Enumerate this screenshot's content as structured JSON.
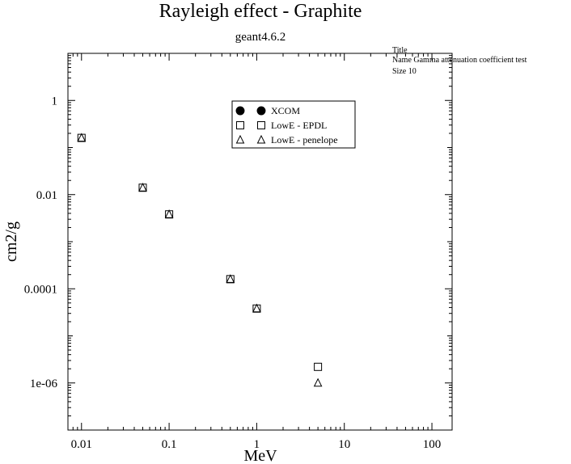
{
  "chart_data": {
    "type": "scatter",
    "title": "Rayleigh effect - Graphite",
    "subtitle": "geant4.6.2",
    "xlabel": "MeV",
    "ylabel": "cm2/g",
    "xscale": "log",
    "yscale": "log",
    "xlim": [
      0.007,
      170
    ],
    "ylim": [
      1e-07,
      10
    ],
    "x_ticks": [
      {
        "value": 0.01,
        "label": "0.01"
      },
      {
        "value": 0.1,
        "label": "0.1"
      },
      {
        "value": 1,
        "label": "1"
      },
      {
        "value": 10,
        "label": "10"
      },
      {
        "value": 100,
        "label": "100"
      }
    ],
    "y_ticks": [
      {
        "value": 1e-06,
        "label": "1e-06"
      },
      {
        "value": 0.0001,
        "label": "0.0001"
      },
      {
        "value": 0.01,
        "label": "0.01"
      },
      {
        "value": 1,
        "label": "1"
      }
    ],
    "grid": false,
    "legend_position": "top-center",
    "series": [
      {
        "name": "XCOM",
        "marker": "circle-filled",
        "x": [],
        "y": []
      },
      {
        "name": "LowE - EPDL",
        "marker": "square-open",
        "x": [
          0.01,
          0.05,
          0.1,
          0.5,
          1,
          5
        ],
        "y": [
          0.16,
          0.014,
          0.0038,
          0.00016,
          3.8e-05,
          2.2e-06
        ]
      },
      {
        "name": "LowE - penelope",
        "marker": "triangle-open",
        "x": [
          0.01,
          0.05,
          0.1,
          0.5,
          1,
          5
        ],
        "y": [
          0.16,
          0.014,
          0.0038,
          0.00016,
          3.8e-05,
          1e-06
        ]
      }
    ]
  },
  "corner_note": {
    "line1": "Title",
    "line2": "Name  Gamma attenuation coefficient test",
    "line3": "Size  10"
  }
}
